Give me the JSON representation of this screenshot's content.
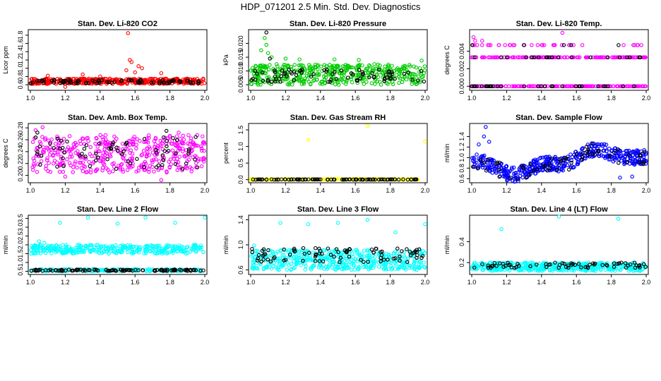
{
  "figure_title": "HDP_071201  2.5 Min. Std. Dev. Diagnostics",
  "colors": {
    "background": "#ffffff",
    "axis": "#000000",
    "black_series": "#000000",
    "red": "#ff0000",
    "green": "#00cc00",
    "magenta": "#ff00ff",
    "yellow": "#ffff00",
    "blue": "#0000ff",
    "cyan": "#00ffff"
  },
  "chart_data": [
    {
      "type": "scatter",
      "title": "Stan. Dev. Li-820 CO2",
      "xlabel": "",
      "ylabel": "Licor ppm",
      "xlim": [
        1.0,
        2.0
      ],
      "ylim": [
        0.5,
        1.9
      ],
      "xticks": [
        "1.0",
        "1.2",
        "1.4",
        "1.6",
        "1.8",
        "2.0"
      ],
      "yticks": [
        "0.6",
        "0.8",
        "1.0",
        "1.2",
        "1.4",
        "1.6",
        "1.8"
      ],
      "series": [
        {
          "name": "main",
          "color": "red",
          "description": "dense band ~0.62–0.75",
          "band": [
            0.62,
            0.75
          ],
          "count": 420,
          "seed": 11,
          "extras": [
            [
              1.56,
              1.85
            ],
            [
              1.55,
              0.95
            ],
            [
              1.57,
              1.2
            ],
            [
              1.58,
              1.15
            ],
            [
              1.62,
              1.05
            ],
            [
              1.64,
              1.0
            ],
            [
              1.6,
              0.9
            ],
            [
              1.1,
              0.82
            ],
            [
              1.3,
              0.85
            ],
            [
              1.4,
              0.8
            ],
            [
              1.75,
              0.88
            ],
            [
              1.2,
              0.55
            ]
          ]
        },
        {
          "name": "black",
          "color": "black_series",
          "band": [
            0.63,
            0.72
          ],
          "count": 80,
          "seed": 12,
          "extras": []
        }
      ]
    },
    {
      "type": "scatter",
      "title": "Stan. Dev. Li-820 Pressure",
      "xlabel": "",
      "ylabel": "kPa",
      "xlim": [
        1.0,
        2.0
      ],
      "ylim": [
        0.0035,
        0.0245
      ],
      "xticks": [
        "1.0",
        "1.2",
        "1.4",
        "1.6",
        "1.8",
        "2.0"
      ],
      "yticks": [
        "0.005",
        "0.010",
        "0.015",
        "0.020"
      ],
      "series": [
        {
          "name": "main",
          "color": "green",
          "band": [
            0.005,
            0.0125
          ],
          "count": 420,
          "seed": 21,
          "extras": [
            [
              1.08,
              0.022
            ],
            [
              1.09,
              0.0195
            ],
            [
              1.06,
              0.0175
            ],
            [
              1.1,
              0.0165
            ],
            [
              1.12,
              0.015
            ],
            [
              1.2,
              0.0145
            ],
            [
              1.28,
              0.0142
            ],
            [
              1.48,
              0.0142
            ],
            [
              1.62,
              0.014
            ],
            [
              1.98,
              0.0138
            ]
          ]
        },
        {
          "name": "black",
          "color": "black_series",
          "band": [
            0.006,
            0.0105
          ],
          "count": 80,
          "seed": 22,
          "extras": [
            [
              1.09,
              0.024
            ],
            [
              1.11,
              0.0145
            ]
          ]
        }
      ]
    },
    {
      "type": "scatter",
      "title": "Stan. Dev. Li-820 Temp.",
      "xlabel": "",
      "ylabel": "degrees C",
      "xlim": [
        1.0,
        2.0
      ],
      "ylim": [
        -0.0003,
        0.0063
      ],
      "xticks": [
        "1.0",
        "1.2",
        "1.4",
        "1.6",
        "1.8",
        "2.0"
      ],
      "yticks": [
        "0.000",
        "0.002",
        "0.004"
      ],
      "series": [
        {
          "name": "main",
          "color": "magenta",
          "quantized": [
            0.0,
            0.0033,
            0.0047
          ],
          "weights": [
            0.45,
            0.45,
            0.1
          ],
          "count": 340,
          "seed": 31,
          "extras": [
            [
              1.01,
              0.0056
            ],
            [
              1.02,
              0.0052
            ],
            [
              1.06,
              0.0052
            ],
            [
              1.52,
              0.0061
            ],
            [
              1.1,
              0.0047
            ],
            [
              1.95,
              0.0047
            ]
          ]
        },
        {
          "name": "black",
          "color": "black_series",
          "quantized": [
            0.0,
            0.0033,
            0.0047
          ],
          "weights": [
            0.5,
            0.4,
            0.1
          ],
          "count": 60,
          "seed": 32,
          "extras": []
        }
      ]
    },
    {
      "type": "scatter",
      "title": "Stan. Dev. Amb. Box Temp.",
      "xlabel": "",
      "ylabel": "degrees C",
      "xlim": [
        1.0,
        2.0
      ],
      "ylim": [
        0.19,
        0.285
      ],
      "xticks": [
        "1.0",
        "1.2",
        "1.4",
        "1.6",
        "1.8",
        "2.0"
      ],
      "yticks": [
        "0.20",
        "0.22",
        "0.24",
        "0.26",
        "0.28"
      ],
      "series": [
        {
          "name": "main",
          "color": "magenta",
          "band": [
            0.205,
            0.268
          ],
          "count": 420,
          "seed": 41,
          "extras": [
            [
              1.07,
              0.281
            ],
            [
              1.03,
              0.276
            ],
            [
              1.75,
              0.192
            ],
            [
              1.2,
              0.198
            ],
            [
              1.85,
              0.272
            ]
          ]
        },
        {
          "name": "black",
          "color": "black_series",
          "band": [
            0.21,
            0.265
          ],
          "count": 70,
          "seed": 42,
          "extras": [
            [
              1.78,
              0.275
            ],
            [
              1.04,
              0.272
            ]
          ]
        }
      ]
    },
    {
      "type": "scatter",
      "title": "Stan. Dev. Gas Stream RH",
      "xlabel": "",
      "ylabel": "percent",
      "xlim": [
        1.0,
        2.0
      ],
      "ylim": [
        -0.05,
        1.65
      ],
      "xticks": [
        "1.0",
        "1.2",
        "1.4",
        "1.6",
        "1.8",
        "2.0"
      ],
      "yticks": [
        "0.0",
        "0.5",
        "1.0",
        "1.5"
      ],
      "series": [
        {
          "name": "main",
          "color": "yellow",
          "band": [
            0.0,
            0.02
          ],
          "count": 150,
          "seed": 51,
          "extras": [
            [
              1.33,
              1.2
            ],
            [
              1.67,
              1.62
            ],
            [
              2.0,
              1.15
            ],
            [
              1.0,
              -0.02
            ]
          ]
        },
        {
          "name": "black",
          "color": "black_series",
          "band": [
            0.0,
            0.01
          ],
          "count": 90,
          "seed": 52,
          "extras": []
        }
      ]
    },
    {
      "type": "scatter",
      "title": "Stan. Dev. Sample Flow",
      "xlabel": "",
      "ylabel": "ml/min",
      "xlim": [
        1.0,
        2.0
      ],
      "ylim": [
        0.55,
        1.62
      ],
      "xticks": [
        "1.0",
        "1.2",
        "1.4",
        "1.6",
        "1.8",
        "2.0"
      ],
      "yticks": [
        "0.6",
        "0.8",
        "1.0",
        "1.2",
        "1.4"
      ],
      "series": [
        {
          "name": "main",
          "color": "blue",
          "wave": true,
          "count": 480,
          "seed": 61,
          "extras": [
            [
              1.08,
              1.58
            ],
            [
              1.07,
              1.4
            ],
            [
              1.1,
              1.3
            ],
            [
              1.04,
              1.25
            ],
            [
              1.85,
              0.62
            ],
            [
              1.92,
              0.64
            ]
          ]
        },
        {
          "name": "black",
          "color": "black_series",
          "wave": true,
          "count": 60,
          "seed": 62,
          "extras": []
        }
      ]
    },
    {
      "type": "scatter",
      "title": "Stan. Dev. Line 2 Flow",
      "xlabel": "",
      "ylabel": "ml/min",
      "xlim": [
        1.0,
        2.0
      ],
      "ylim": [
        0.4,
        3.6
      ],
      "xticks": [
        "1.0",
        "1.2",
        "1.4",
        "1.6",
        "1.8",
        "2.0"
      ],
      "yticks": [
        "0.5",
        "1.0",
        "1.5",
        "2.0",
        "2.5",
        "3.0",
        "3.5"
      ],
      "series": [
        {
          "name": "main",
          "color": "cyan",
          "band": [
            1.5,
            2.0
          ],
          "count": 340,
          "seed": 71,
          "extras": [
            [
              1.17,
              3.25
            ],
            [
              1.33,
              3.55
            ],
            [
              1.5,
              3.2
            ],
            [
              1.66,
              3.55
            ],
            [
              1.83,
              3.25
            ],
            [
              2.0,
              3.55
            ],
            [
              1.05,
              2.2
            ],
            [
              1.08,
              2.1
            ]
          ]
        },
        {
          "name": "low",
          "color": "cyan",
          "band": [
            0.5,
            0.62
          ],
          "count": 160,
          "seed": 73,
          "extras": []
        },
        {
          "name": "black",
          "color": "black_series",
          "band": [
            0.52,
            0.6
          ],
          "count": 110,
          "seed": 72,
          "extras": []
        }
      ]
    },
    {
      "type": "scatter",
      "title": "Stan. Dev. Line 3 Flow",
      "xlabel": "",
      "ylabel": "ml/min",
      "xlim": [
        1.0,
        2.0
      ],
      "ylim": [
        0.55,
        1.45
      ],
      "xticks": [
        "1.0",
        "1.2",
        "1.4",
        "1.6",
        "1.8",
        "2.0"
      ],
      "yticks": [
        "0.6",
        "1.0",
        "1.4"
      ],
      "series": [
        {
          "name": "main",
          "color": "cyan",
          "band": [
            0.6,
            0.92
          ],
          "count": 460,
          "seed": 81,
          "extras": [
            [
              1.17,
              1.35
            ],
            [
              1.33,
              1.33
            ],
            [
              1.5,
              1.35
            ],
            [
              1.67,
              1.4
            ],
            [
              1.83,
              1.2
            ],
            [
              2.0,
              1.33
            ],
            [
              1.02,
              0.99
            ]
          ]
        },
        {
          "name": "black",
          "color": "black_series",
          "band": [
            0.72,
            0.95
          ],
          "count": 90,
          "seed": 82,
          "extras": []
        }
      ]
    },
    {
      "type": "scatter",
      "title": "Stan. Dev. Line 4 (LT) Flow",
      "xlabel": "",
      "ylabel": "ml/min",
      "xlim": [
        1.0,
        2.0
      ],
      "ylim": [
        0.1,
        0.64
      ],
      "xticks": [
        "1.0",
        "1.2",
        "1.4",
        "1.6",
        "1.8",
        "2.0"
      ],
      "yticks": [
        "0.2",
        "0.4"
      ],
      "series": [
        {
          "name": "main",
          "color": "cyan",
          "band": [
            0.12,
            0.2
          ],
          "count": 420,
          "seed": 91,
          "extras": [
            [
              1.17,
              0.52
            ],
            [
              1.5,
              0.64
            ],
            [
              1.84,
              0.62
            ]
          ]
        },
        {
          "name": "black",
          "color": "black_series",
          "band": [
            0.15,
            0.2
          ],
          "count": 70,
          "seed": 92,
          "extras": []
        }
      ]
    }
  ]
}
